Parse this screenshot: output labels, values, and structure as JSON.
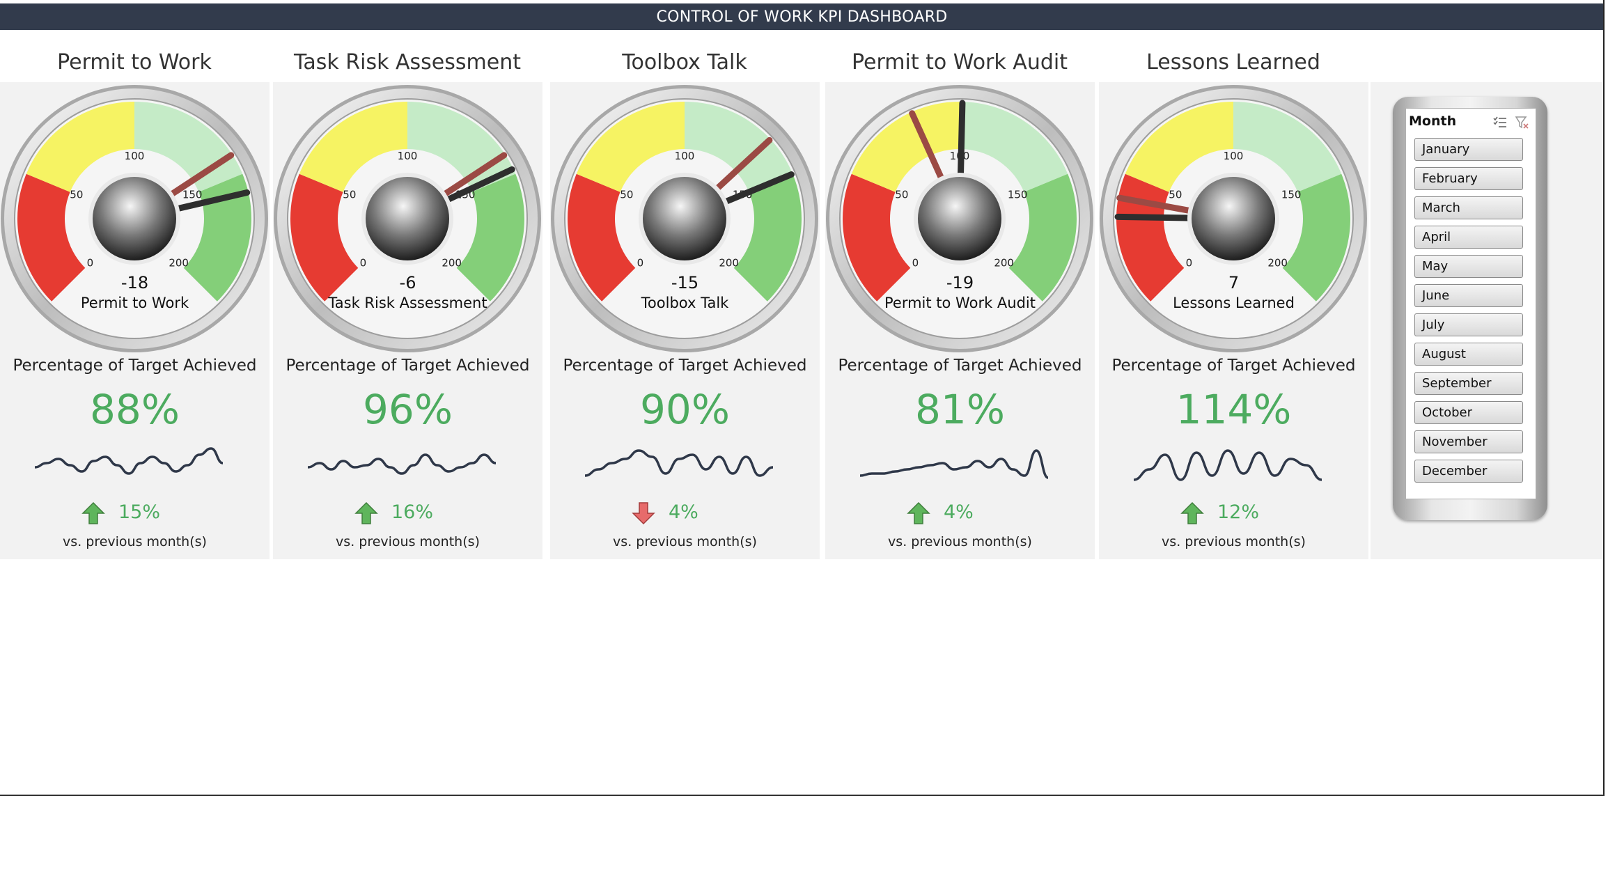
{
  "header": {
    "title": "CONTROL OF WORK KPI DASHBOARD"
  },
  "colors": {
    "header_bg": "#323b4c",
    "positive": "#4cab5f",
    "negative": "#e15759",
    "zone_red": "#e53027",
    "zone_yellow": "#f6f25b",
    "zone_lightgreen": "#c5ebc7",
    "zone_green": "#7dcc72"
  },
  "gauge_scale": {
    "min": 0,
    "max": 200,
    "tick_labels": [
      "0",
      "50",
      "100",
      "150",
      "200"
    ]
  },
  "kpis": [
    {
      "title": "Permit to Work",
      "gauge_value": "-18",
      "gauge_label": "Permit to Work",
      "needle_actual": 157,
      "needle_previous": 142,
      "pct_caption": "Percentage of Target Achieved",
      "pct": "88%",
      "change": "15%",
      "direction": "up",
      "vs_caption": "vs. previous month(s)",
      "trend": [
        0.55,
        0.45,
        0.35,
        0.5,
        0.65,
        0.4,
        0.3,
        0.5,
        0.7,
        0.45,
        0.3,
        0.45,
        0.65,
        0.5,
        0.25,
        0.1,
        0.45
      ]
    },
    {
      "title": "Task Risk Assessment",
      "gauge_value": "-6",
      "gauge_label": "Task Risk Assessment",
      "needle_actual": 148,
      "needle_previous": 142,
      "pct_caption": "Percentage of Target Achieved",
      "pct": "96%",
      "change": "16%",
      "direction": "up",
      "vs_caption": "vs. previous month(s)",
      "trend": [
        0.55,
        0.45,
        0.6,
        0.4,
        0.55,
        0.5,
        0.35,
        0.55,
        0.7,
        0.5,
        0.25,
        0.5,
        0.65,
        0.55,
        0.45,
        0.25,
        0.45
      ]
    },
    {
      "title": "Toolbox Talk",
      "gauge_value": "-15",
      "gauge_label": "Toolbox Talk",
      "needle_actual": 150,
      "needle_previous": 135,
      "pct_caption": "Percentage of Target Achieved",
      "pct": "90%",
      "change": "4%",
      "direction": "down",
      "vs_caption": "vs. previous month(s)",
      "trend": [
        0.75,
        0.6,
        0.45,
        0.35,
        0.15,
        0.3,
        0.7,
        0.35,
        0.25,
        0.6,
        0.3,
        0.7,
        0.3,
        0.75,
        0.55
      ]
    },
    {
      "title": "Permit to Work Audit",
      "gauge_value": "-19",
      "gauge_label": "Permit to Work Audit",
      "needle_actual": 101,
      "needle_previous": 82,
      "pct_caption": "Percentage of Target Achieved",
      "pct": "81%",
      "change": "4%",
      "direction": "up",
      "vs_caption": "vs. previous month(s)",
      "trend": [
        0.75,
        0.7,
        0.7,
        0.65,
        0.6,
        0.55,
        0.5,
        0.45,
        0.6,
        0.55,
        0.4,
        0.55,
        0.35,
        0.6,
        0.75,
        0.15,
        0.8
      ]
    },
    {
      "title": "Lessons Learned",
      "gauge_value": "7",
      "gauge_label": "Lessons Learned",
      "needle_actual": 34,
      "needle_previous": 41,
      "pct_caption": "Percentage of Target Achieved",
      "pct": "114%",
      "change": "12%",
      "direction": "up",
      "vs_caption": "vs. previous month(s)",
      "trend": [
        0.85,
        0.6,
        0.25,
        0.85,
        0.2,
        0.75,
        0.15,
        0.7,
        0.2,
        0.75,
        0.35,
        0.5,
        0.85
      ]
    }
  ],
  "slicer": {
    "title": "Month",
    "multi_select_icon": "multi-select-icon",
    "clear_filter_icon": "clear-filter-icon",
    "items": [
      "January",
      "February",
      "March",
      "April",
      "May",
      "June",
      "July",
      "August",
      "September",
      "October",
      "November",
      "December"
    ]
  }
}
